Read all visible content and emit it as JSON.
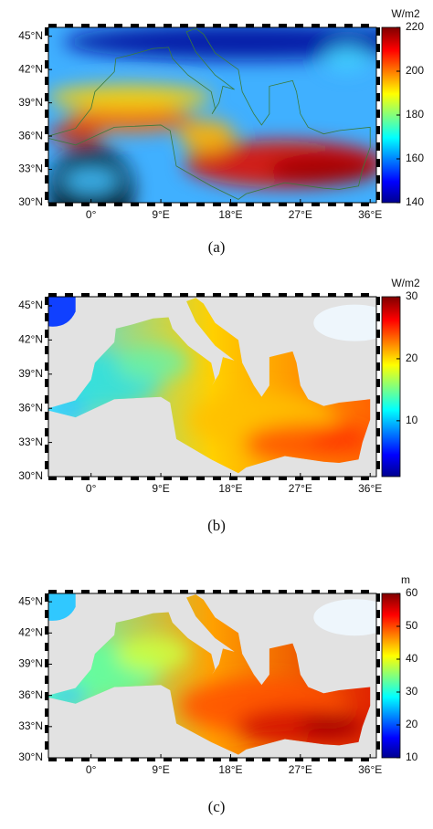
{
  "axes": {
    "xlim": [
      -5.5,
      36.8
    ],
    "ylim": [
      30,
      45.8
    ],
    "xticks": [
      {
        "value": 0,
        "label": "0°"
      },
      {
        "value": 9,
        "label": "9°E"
      },
      {
        "value": 18,
        "label": "18°E"
      },
      {
        "value": 27,
        "label": "27°E"
      },
      {
        "value": 36,
        "label": "36°E"
      }
    ],
    "yticks": [
      {
        "value": 30,
        "label": "30°N"
      },
      {
        "value": 33,
        "label": "33°N"
      },
      {
        "value": 36,
        "label": "36°N"
      },
      {
        "value": 39,
        "label": "39°N"
      },
      {
        "value": 42,
        "label": "42°N"
      },
      {
        "value": 45,
        "label": "45°N"
      }
    ]
  },
  "panels": [
    {
      "label": "(a)",
      "unit": "W/m2",
      "clim": [
        140,
        220
      ],
      "cticks": [
        140,
        160,
        180,
        200,
        220
      ]
    },
    {
      "label": "(b)",
      "unit": "W/m2",
      "clim": [
        1,
        30
      ],
      "cticks": [
        10,
        20,
        30
      ]
    },
    {
      "label": "(c)",
      "unit": "m",
      "clim": [
        10,
        60
      ],
      "cticks": [
        10,
        20,
        30,
        40,
        50,
        60
      ]
    }
  ]
}
